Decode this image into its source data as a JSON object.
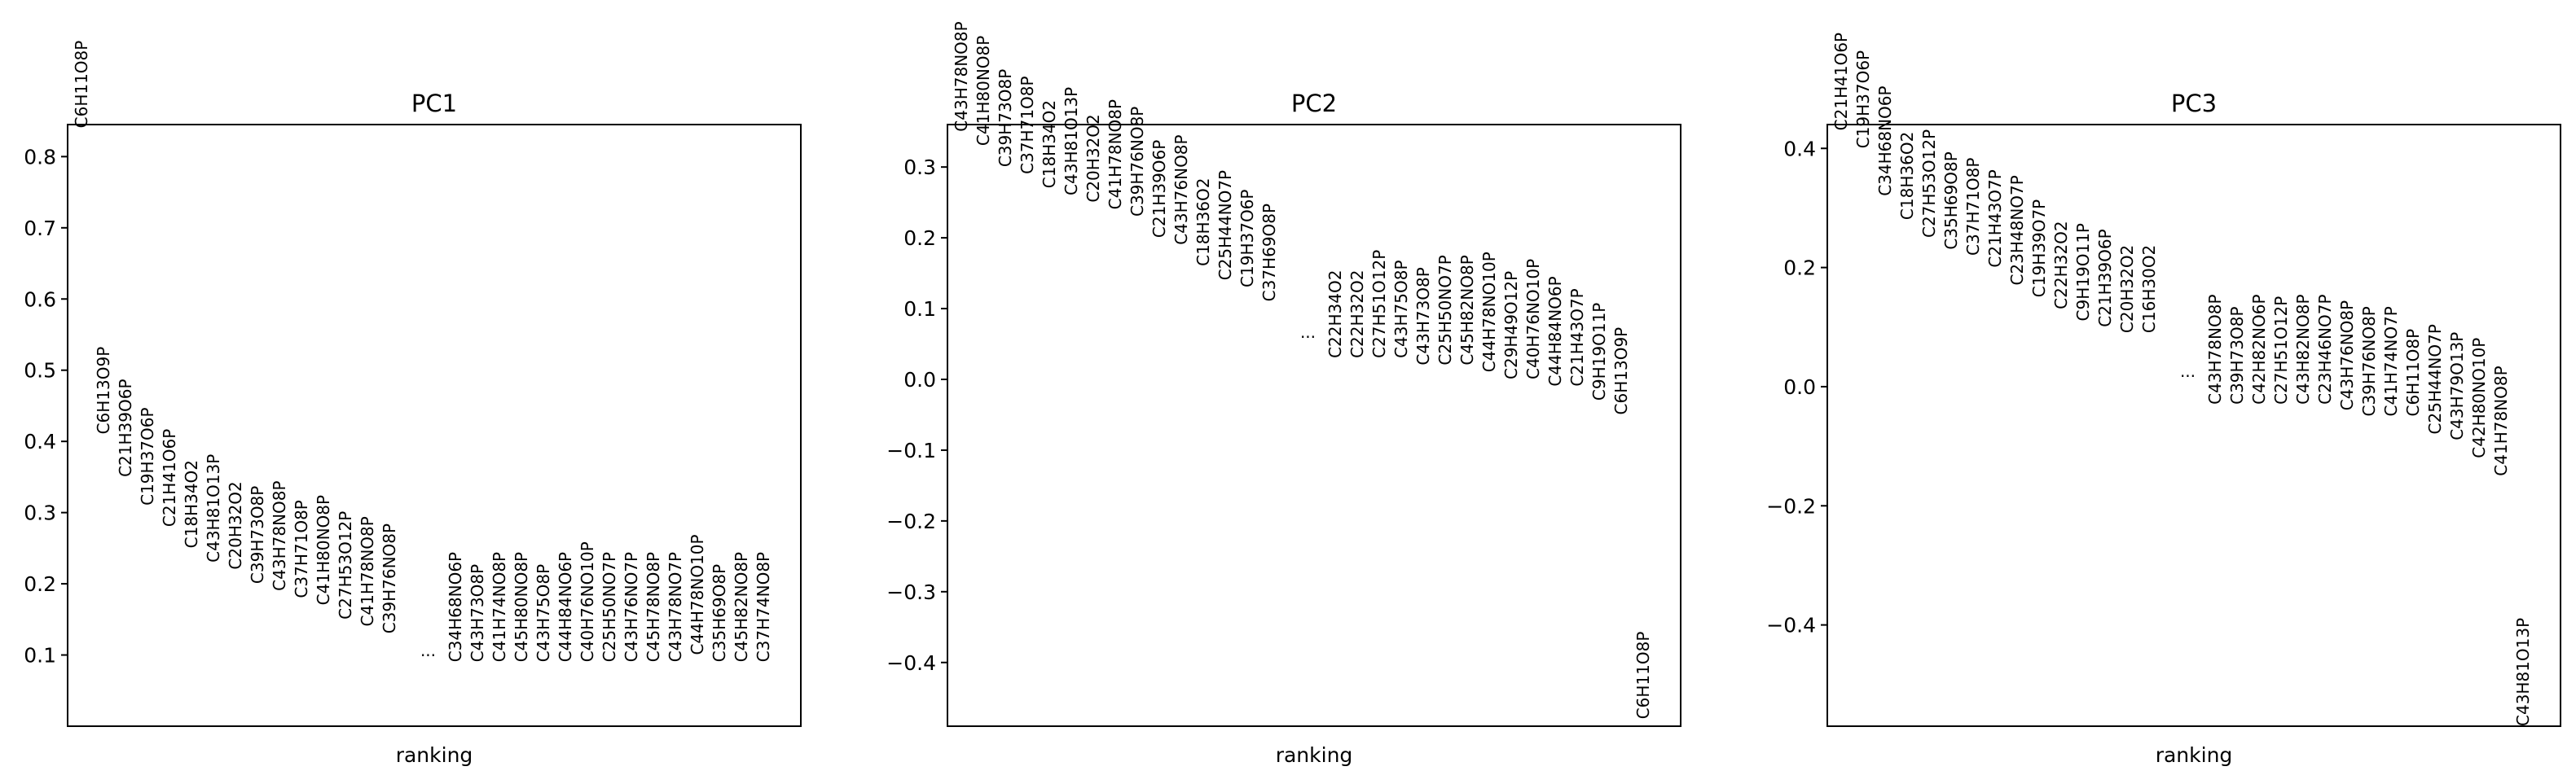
{
  "chart_data": [
    {
      "type": "scatter",
      "title": "PC1",
      "xlabel": "ranking",
      "ylabel": "",
      "ylim": [
        0.0,
        0.845
      ],
      "yticks": [
        0.1,
        0.2,
        0.3,
        0.4,
        0.5,
        0.6,
        0.7,
        0.8
      ],
      "ytick_labels": [
        "0.1",
        "0.2",
        "0.3",
        "0.4",
        "0.5",
        "0.6",
        "0.7",
        "0.8"
      ],
      "ellipsis": "...",
      "top_genes": [
        {
          "name": "C6H11O8P",
          "value": 0.84
        },
        {
          "name": "C6H13O9P",
          "value": 0.41
        },
        {
          "name": "C21H39O6P",
          "value": 0.35
        },
        {
          "name": "C19H37O6P",
          "value": 0.31
        },
        {
          "name": "C21H41O6P",
          "value": 0.28
        },
        {
          "name": "C18H34O2",
          "value": 0.25
        },
        {
          "name": "C43H81O13P",
          "value": 0.23
        },
        {
          "name": "C20H32O2",
          "value": 0.22
        },
        {
          "name": "C39H73O8P",
          "value": 0.2
        },
        {
          "name": "C43H78NO8P",
          "value": 0.19
        },
        {
          "name": "C37H71O8P",
          "value": 0.18
        },
        {
          "name": "C41H80NO8P",
          "value": 0.17
        },
        {
          "name": "C27H53O12P",
          "value": 0.15
        },
        {
          "name": "C41H78NO8P",
          "value": 0.14
        },
        {
          "name": "C39H76NO8P",
          "value": 0.13
        }
      ],
      "bottom_genes": [
        {
          "name": "C34H68NO6P",
          "value": 0.09
        },
        {
          "name": "C43H73O8P",
          "value": 0.09
        },
        {
          "name": "C41H74NO8P",
          "value": 0.09
        },
        {
          "name": "C45H80NO8P",
          "value": 0.09
        },
        {
          "name": "C43H75O8P",
          "value": 0.09
        },
        {
          "name": "C44H84NO6P",
          "value": 0.09
        },
        {
          "name": "C40H76NO10P",
          "value": 0.09
        },
        {
          "name": "C25H50NO7P",
          "value": 0.09
        },
        {
          "name": "C43H76NO7P",
          "value": 0.09
        },
        {
          "name": "C45H78NO8P",
          "value": 0.09
        },
        {
          "name": "C43H78NO7P",
          "value": 0.09
        },
        {
          "name": "C44H78NO10P",
          "value": 0.1
        },
        {
          "name": "C35H69O8P",
          "value": 0.09
        },
        {
          "name": "C45H82NO8P",
          "value": 0.09
        },
        {
          "name": "C37H74NO8P",
          "value": 0.09
        }
      ]
    },
    {
      "type": "scatter",
      "title": "PC2",
      "xlabel": "ranking",
      "ylabel": "",
      "ylim": [
        -0.49,
        0.36
      ],
      "yticks": [
        -0.4,
        -0.3,
        -0.2,
        -0.1,
        0.0,
        0.1,
        0.2,
        0.3
      ],
      "ytick_labels": [
        "−0.4",
        "−0.3",
        "−0.2",
        "−0.1",
        "0.0",
        "0.1",
        "0.2",
        "0.3"
      ],
      "ellipsis": "...",
      "top_genes": [
        {
          "name": "C43H78NO8P",
          "value": 0.35
        },
        {
          "name": "C41H80NO8P",
          "value": 0.33
        },
        {
          "name": "C39H73O8P",
          "value": 0.3
        },
        {
          "name": "C37H71O8P",
          "value": 0.29
        },
        {
          "name": "C18H34O2",
          "value": 0.27
        },
        {
          "name": "C43H81O13P",
          "value": 0.26
        },
        {
          "name": "C20H32O2",
          "value": 0.25
        },
        {
          "name": "C41H78NO8P",
          "value": 0.24
        },
        {
          "name": "C39H76NO8P",
          "value": 0.23
        },
        {
          "name": "C21H39O6P",
          "value": 0.2
        },
        {
          "name": "C43H76NO8P",
          "value": 0.19
        },
        {
          "name": "C18H36O2",
          "value": 0.16
        },
        {
          "name": "C25H44NO7P",
          "value": 0.14
        },
        {
          "name": "C19H37O6P",
          "value": 0.13
        },
        {
          "name": "C37H69O8P",
          "value": 0.11
        }
      ],
      "bottom_genes": [
        {
          "name": "C22H34O2",
          "value": 0.03
        },
        {
          "name": "C22H32O2",
          "value": 0.03
        },
        {
          "name": "C27H51O12P",
          "value": 0.03
        },
        {
          "name": "C43H75O8P",
          "value": 0.03
        },
        {
          "name": "C43H73O8P",
          "value": 0.02
        },
        {
          "name": "C25H50NO7P",
          "value": 0.02
        },
        {
          "name": "C45H82NO8P",
          "value": 0.02
        },
        {
          "name": "C44H78NO10P",
          "value": 0.01
        },
        {
          "name": "C29H49O12P",
          "value": 0.0
        },
        {
          "name": "C40H76NO10P",
          "value": 0.0
        },
        {
          "name": "C44H84NO6P",
          "value": -0.01
        },
        {
          "name": "C21H43O7P",
          "value": -0.01
        },
        {
          "name": "C9H19O11P",
          "value": -0.03
        },
        {
          "name": "C6H13O9P",
          "value": -0.05
        },
        {
          "name": "C6H11O8P",
          "value": -0.48
        }
      ]
    },
    {
      "type": "scatter",
      "title": "PC3",
      "xlabel": "ranking",
      "ylabel": "",
      "ylim": [
        -0.57,
        0.44
      ],
      "yticks": [
        -0.4,
        -0.2,
        0.0,
        0.2,
        0.4
      ],
      "ytick_labels": [
        "−0.4",
        "−0.2",
        "0.0",
        "0.2",
        "0.4"
      ],
      "ellipsis": "...",
      "top_genes": [
        {
          "name": "C21H41O6P",
          "value": 0.43
        },
        {
          "name": "C19H37O6P",
          "value": 0.4
        },
        {
          "name": "C34H68NO6P",
          "value": 0.32
        },
        {
          "name": "C18H36O2",
          "value": 0.28
        },
        {
          "name": "C27H53O12P",
          "value": 0.25
        },
        {
          "name": "C35H69O8P",
          "value": 0.23
        },
        {
          "name": "C37H71O8P",
          "value": 0.22
        },
        {
          "name": "C21H43O7P",
          "value": 0.2
        },
        {
          "name": "C23H48NO7P",
          "value": 0.17
        },
        {
          "name": "C19H39O7P",
          "value": 0.15
        },
        {
          "name": "C22H32O2",
          "value": 0.13
        },
        {
          "name": "C9H19O11P",
          "value": 0.11
        },
        {
          "name": "C21H39O6P",
          "value": 0.1
        },
        {
          "name": "C20H32O2",
          "value": 0.09
        },
        {
          "name": "C16H30O2",
          "value": 0.09
        }
      ],
      "bottom_genes": [
        {
          "name": "C43H78NO8P",
          "value": -0.03
        },
        {
          "name": "C39H73O8P",
          "value": -0.03
        },
        {
          "name": "C42H82NO6P",
          "value": -0.03
        },
        {
          "name": "C27H51O12P",
          "value": -0.03
        },
        {
          "name": "C43H82NO8P",
          "value": -0.03
        },
        {
          "name": "C23H46NO7P",
          "value": -0.03
        },
        {
          "name": "C43H76NO8P",
          "value": -0.04
        },
        {
          "name": "C39H76NO8P",
          "value": -0.05
        },
        {
          "name": "C41H74NO7P",
          "value": -0.05
        },
        {
          "name": "C6H11O8P",
          "value": -0.05
        },
        {
          "name": "C25H44NO7P",
          "value": -0.08
        },
        {
          "name": "C43H79O13P",
          "value": -0.09
        },
        {
          "name": "C42H80NO10P",
          "value": -0.12
        },
        {
          "name": "C41H78NO8P",
          "value": -0.15
        },
        {
          "name": "C43H81O13P",
          "value": -0.57
        }
      ]
    }
  ]
}
